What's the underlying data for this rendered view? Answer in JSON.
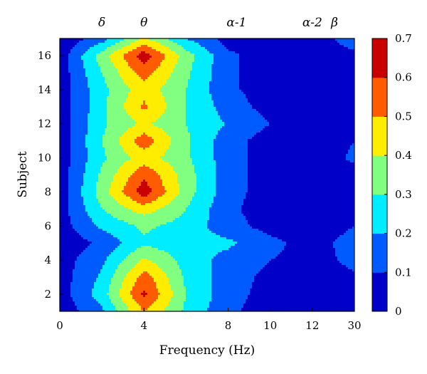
{
  "chart_data": {
    "type": "heatmap",
    "subtype": "filled-contour",
    "xlabel": "Frequency (Hz)",
    "ylabel": "Subject",
    "x_ticks": [
      "0",
      "4",
      "8",
      "10",
      "12",
      "30"
    ],
    "y_ticks": [
      "2",
      "4",
      "6",
      "8",
      "10",
      "12",
      "14",
      "16"
    ],
    "ylim": [
      1,
      17
    ],
    "band_labels": [
      "δ",
      "θ",
      "α-1",
      "α-2",
      "β"
    ],
    "colorbar": {
      "range": [
        0,
        0.7
      ],
      "ticks": [
        "0",
        "0.1",
        "0.2",
        "0.3",
        "0.4",
        "0.5",
        "0.6",
        "0.7"
      ],
      "colormap": "jet",
      "levels": [
        0,
        0.1,
        0.2,
        0.3,
        0.4,
        0.5,
        0.6,
        0.7
      ]
    },
    "grid": false,
    "x_columns": [
      "0",
      "2",
      "4",
      "6",
      "8",
      "10",
      "12",
      "30"
    ],
    "y_rows": [
      1,
      2,
      3,
      4,
      5,
      6,
      7,
      8,
      9,
      10,
      11,
      12,
      13,
      14,
      15,
      16,
      17
    ],
    "z": [
      [
        0.03,
        0.18,
        0.5,
        0.28,
        0.12,
        0.05,
        0.03,
        0.05
      ],
      [
        0.05,
        0.25,
        0.62,
        0.3,
        0.14,
        0.06,
        0.04,
        0.07
      ],
      [
        0.05,
        0.22,
        0.55,
        0.28,
        0.15,
        0.07,
        0.05,
        0.09
      ],
      [
        0.05,
        0.18,
        0.42,
        0.26,
        0.16,
        0.1,
        0.07,
        0.12
      ],
      [
        0.03,
        0.12,
        0.28,
        0.24,
        0.22,
        0.13,
        0.05,
        0.15
      ],
      [
        0.05,
        0.22,
        0.32,
        0.26,
        0.14,
        0.06,
        0.03,
        0.1
      ],
      [
        0.05,
        0.3,
        0.45,
        0.3,
        0.12,
        0.05,
        0.03,
        0.08
      ],
      [
        0.04,
        0.35,
        0.66,
        0.35,
        0.14,
        0.05,
        0.03,
        0.06
      ],
      [
        0.04,
        0.32,
        0.58,
        0.35,
        0.14,
        0.05,
        0.03,
        0.06
      ],
      [
        0.04,
        0.28,
        0.45,
        0.32,
        0.14,
        0.05,
        0.03,
        0.12
      ],
      [
        0.04,
        0.3,
        0.56,
        0.32,
        0.14,
        0.05,
        0.03,
        0.1
      ],
      [
        0.04,
        0.28,
        0.42,
        0.3,
        0.19,
        0.1,
        0.05,
        0.08
      ],
      [
        0.04,
        0.27,
        0.52,
        0.3,
        0.15,
        0.06,
        0.03,
        0.06
      ],
      [
        0.04,
        0.27,
        0.46,
        0.3,
        0.12,
        0.05,
        0.03,
        0.1
      ],
      [
        0.04,
        0.3,
        0.55,
        0.32,
        0.12,
        0.05,
        0.03,
        0.06
      ],
      [
        0.04,
        0.35,
        0.66,
        0.35,
        0.12,
        0.05,
        0.03,
        0.06
      ],
      [
        0.02,
        0.15,
        0.42,
        0.2,
        0.06,
        0.03,
        0.02,
        0.18
      ]
    ]
  }
}
